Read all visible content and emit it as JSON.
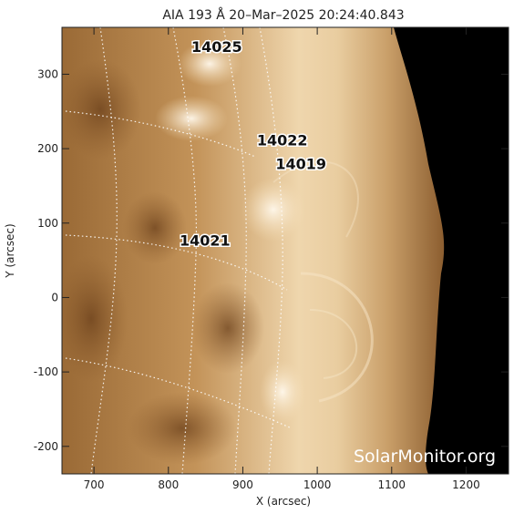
{
  "title": "AIA 193 Å 20–Mar–2025  20:24:40.843",
  "axes": {
    "xlabel": "X (arcsec)",
    "ylabel": "Y (arcsec)",
    "xticks": [
      700,
      800,
      900,
      1000,
      1100,
      1200
    ],
    "yticks": [
      300,
      200,
      100,
      0,
      -100,
      -200
    ],
    "xlim": [
      657,
      1257
    ],
    "ylim": [
      -237,
      363
    ]
  },
  "regions": [
    {
      "label": "14025",
      "x": 865,
      "y": 337
    },
    {
      "label": "14022",
      "x": 953,
      "y": 212
    },
    {
      "label": "14019",
      "x": 978,
      "y": 180
    },
    {
      "label": "14021",
      "x": 849,
      "y": 77
    }
  ],
  "watermark": "SolarMonitor.org",
  "colors": {
    "limb_bright": "#f3e0c0",
    "disk": "#b8864c",
    "dark_region": "#7a4d22",
    "space": "#000000",
    "grid": "#ffffff"
  }
}
